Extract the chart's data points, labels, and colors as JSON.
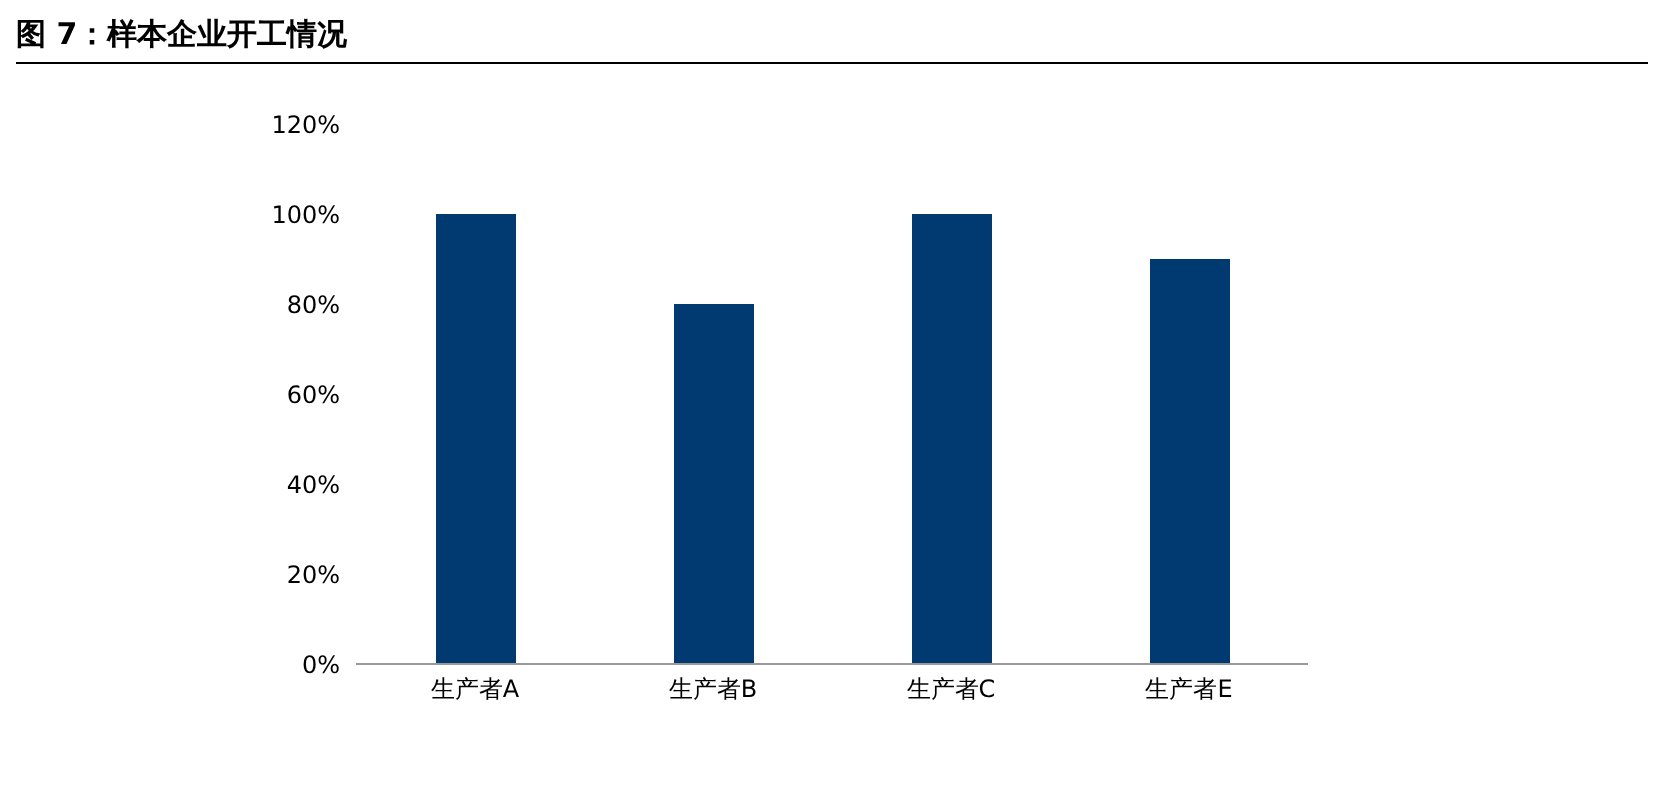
{
  "chart_data": {
    "type": "bar",
    "title": "图 7：样本企业开工情况",
    "categories": [
      "生产者A",
      "生产者B",
      "生产者C",
      "生产者E"
    ],
    "values": [
      100,
      80,
      100,
      90
    ],
    "color": "#003a70",
    "ylim": [
      0,
      120
    ],
    "yticks": [
      {
        "value": 0,
        "label": "0%"
      },
      {
        "value": 20,
        "label": "20%"
      },
      {
        "value": 40,
        "label": "40%"
      },
      {
        "value": 60,
        "label": "60%"
      },
      {
        "value": 80,
        "label": "80%"
      },
      {
        "value": 100,
        "label": "100%"
      },
      {
        "value": 120,
        "label": "120%"
      }
    ],
    "grid": false
  }
}
